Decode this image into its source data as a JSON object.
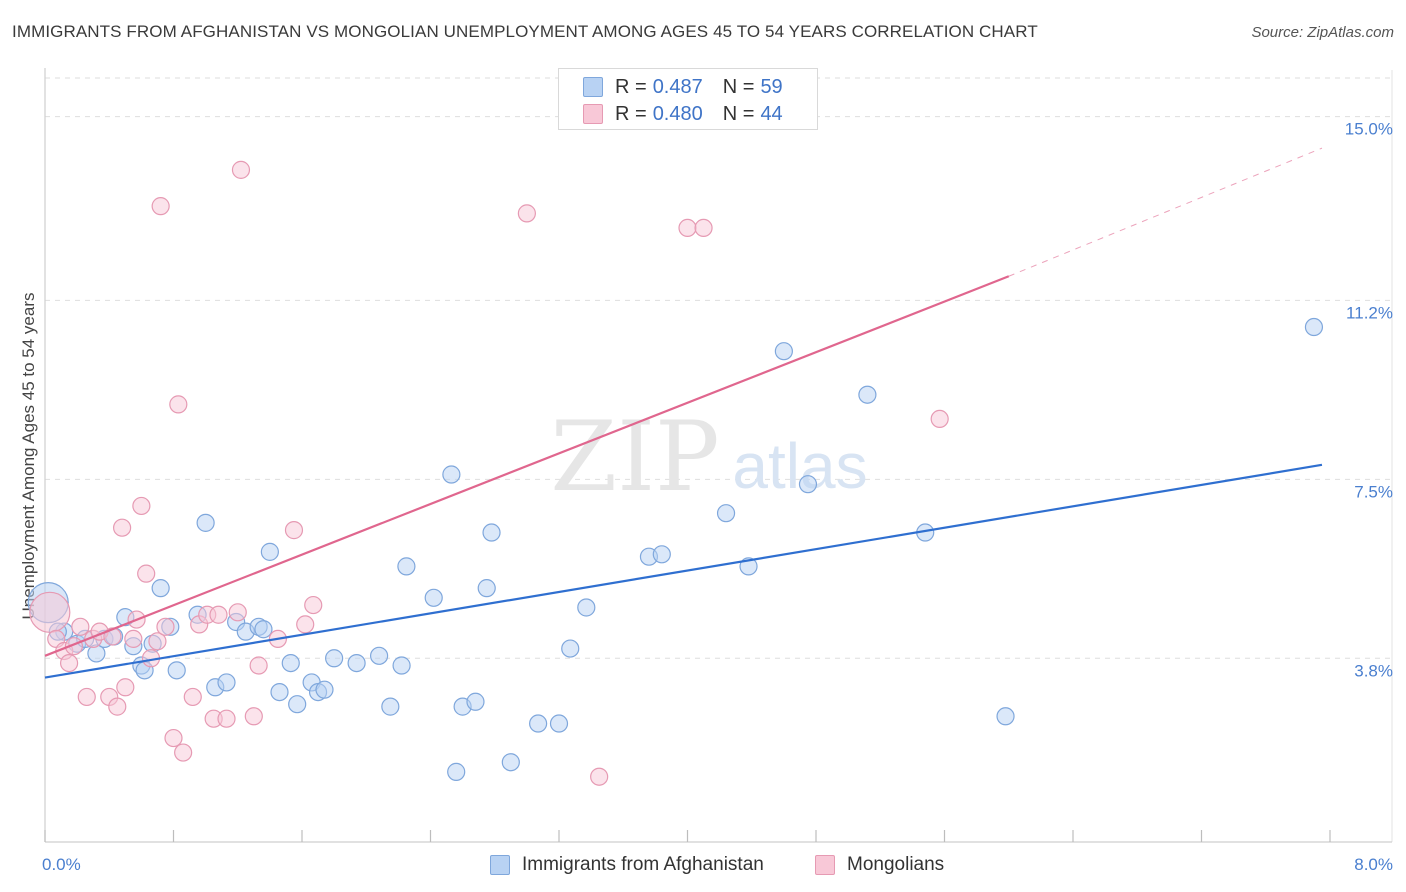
{
  "header": {
    "title": "IMMIGRANTS FROM AFGHANISTAN VS MONGOLIAN UNEMPLOYMENT AMONG AGES 45 TO 54 YEARS CORRELATION CHART",
    "source": "Source: ZipAtlas.com"
  },
  "legend": {
    "blue": {
      "r_label": "R =",
      "r_value": "0.487",
      "n_label": "N =",
      "n_value": "59"
    },
    "pink": {
      "r_label": "R =",
      "r_value": "0.480",
      "n_label": "N =",
      "n_value": "44"
    }
  },
  "bottom_legend": {
    "series1": "Immigrants from Afghanistan",
    "series2": "Mongolians"
  },
  "watermark": {
    "zip": "ZIP",
    "atlas": "atlas"
  },
  "colors": {
    "blue_fill": "#b8d2f3",
    "blue_stroke": "#7fa7dc",
    "blue_line": "#2f6fd0",
    "pink_fill": "#f8c8d7",
    "pink_stroke": "#e69ab3",
    "pink_line": "#e0668e",
    "tick_label": "#4a7fcf",
    "grid": "#dedede"
  },
  "chart_data": {
    "type": "scatter",
    "title": "IMMIGRANTS FROM AFGHANISTAN VS MONGOLIAN UNEMPLOYMENT AMONG AGES 45 TO 54 YEARS CORRELATION CHART",
    "xlabel": "",
    "ylabel": "Unemployment Among Ages 45 to 54 years",
    "xlim": [
      0,
      8.0
    ],
    "ylim": [
      0,
      15.8
    ],
    "x_tick_labels": [
      {
        "value": 0,
        "label": "0.0%"
      },
      {
        "value": 8.0,
        "label": "8.0%"
      }
    ],
    "y_tick_labels": [
      {
        "value": 3.8,
        "label": "3.8%"
      },
      {
        "value": 7.5,
        "label": "7.5%"
      },
      {
        "value": 11.2,
        "label": "11.2%"
      },
      {
        "value": 15.0,
        "label": "15.0%"
      }
    ],
    "series": [
      {
        "name": "Immigrants from Afghanistan",
        "color": "blue",
        "trend": {
          "x": [
            0,
            7.95
          ],
          "y": [
            3.4,
            7.8
          ]
        },
        "points": [
          {
            "x": 0.02,
            "y": 4.95,
            "big": true
          },
          {
            "x": 0.12,
            "y": 4.35
          },
          {
            "x": 0.2,
            "y": 4.1
          },
          {
            "x": 0.25,
            "y": 4.2
          },
          {
            "x": 0.32,
            "y": 3.9
          },
          {
            "x": 0.37,
            "y": 4.2
          },
          {
            "x": 0.43,
            "y": 4.25
          },
          {
            "x": 0.5,
            "y": 4.65
          },
          {
            "x": 0.55,
            "y": 4.05
          },
          {
            "x": 0.6,
            "y": 3.65
          },
          {
            "x": 0.62,
            "y": 3.55
          },
          {
            "x": 0.67,
            "y": 4.1
          },
          {
            "x": 0.72,
            "y": 5.25
          },
          {
            "x": 0.78,
            "y": 4.45
          },
          {
            "x": 0.82,
            "y": 3.55
          },
          {
            "x": 0.95,
            "y": 4.7
          },
          {
            "x": 1.0,
            "y": 6.6
          },
          {
            "x": 1.06,
            "y": 3.2
          },
          {
            "x": 1.13,
            "y": 3.3
          },
          {
            "x": 1.19,
            "y": 4.55
          },
          {
            "x": 1.25,
            "y": 4.35
          },
          {
            "x": 1.33,
            "y": 4.45
          },
          {
            "x": 1.36,
            "y": 4.4
          },
          {
            "x": 1.4,
            "y": 6.0
          },
          {
            "x": 1.46,
            "y": 3.1
          },
          {
            "x": 1.53,
            "y": 3.7
          },
          {
            "x": 1.57,
            "y": 2.85
          },
          {
            "x": 1.66,
            "y": 3.3
          },
          {
            "x": 1.7,
            "y": 3.1
          },
          {
            "x": 1.74,
            "y": 3.15
          },
          {
            "x": 1.8,
            "y": 3.8
          },
          {
            "x": 1.94,
            "y": 3.7
          },
          {
            "x": 2.08,
            "y": 3.85
          },
          {
            "x": 2.15,
            "y": 2.8
          },
          {
            "x": 2.22,
            "y": 3.65
          },
          {
            "x": 2.25,
            "y": 5.7
          },
          {
            "x": 2.42,
            "y": 5.05
          },
          {
            "x": 2.53,
            "y": 7.6
          },
          {
            "x": 2.56,
            "y": 1.45
          },
          {
            "x": 2.6,
            "y": 2.8
          },
          {
            "x": 2.68,
            "y": 2.9
          },
          {
            "x": 2.75,
            "y": 5.25
          },
          {
            "x": 2.78,
            "y": 6.4
          },
          {
            "x": 2.9,
            "y": 1.65
          },
          {
            "x": 3.07,
            "y": 2.45
          },
          {
            "x": 3.2,
            "y": 2.45
          },
          {
            "x": 3.27,
            "y": 4.0
          },
          {
            "x": 3.37,
            "y": 4.85
          },
          {
            "x": 3.76,
            "y": 5.9
          },
          {
            "x": 3.84,
            "y": 5.95
          },
          {
            "x": 4.24,
            "y": 6.8
          },
          {
            "x": 4.38,
            "y": 5.7
          },
          {
            "x": 4.6,
            "y": 10.15
          },
          {
            "x": 4.75,
            "y": 7.4
          },
          {
            "x": 5.12,
            "y": 9.25
          },
          {
            "x": 5.48,
            "y": 6.4
          },
          {
            "x": 5.98,
            "y": 2.6
          },
          {
            "x": 7.9,
            "y": 10.65
          },
          {
            "x": 0.08,
            "y": 4.35
          }
        ]
      },
      {
        "name": "Mongolians",
        "color": "pink",
        "trend": {
          "x": [
            0,
            6.0
          ],
          "y": [
            3.85,
            11.7
          ]
        },
        "trend_extrapolated": {
          "x": [
            6.0,
            7.95
          ],
          "y": [
            11.7,
            14.35
          ]
        },
        "points": [
          {
            "x": 0.03,
            "y": 4.75,
            "big": true
          },
          {
            "x": 0.07,
            "y": 4.2
          },
          {
            "x": 0.12,
            "y": 3.95
          },
          {
            "x": 0.15,
            "y": 3.7
          },
          {
            "x": 0.22,
            "y": 4.45
          },
          {
            "x": 0.26,
            "y": 3.0
          },
          {
            "x": 0.3,
            "y": 4.2
          },
          {
            "x": 0.34,
            "y": 4.35
          },
          {
            "x": 0.4,
            "y": 3.0
          },
          {
            "x": 0.45,
            "y": 2.8
          },
          {
            "x": 0.48,
            "y": 6.5
          },
          {
            "x": 0.5,
            "y": 3.2
          },
          {
            "x": 0.55,
            "y": 4.2
          },
          {
            "x": 0.57,
            "y": 4.6
          },
          {
            "x": 0.6,
            "y": 6.95
          },
          {
            "x": 0.63,
            "y": 5.55
          },
          {
            "x": 0.66,
            "y": 3.8
          },
          {
            "x": 0.7,
            "y": 4.15
          },
          {
            "x": 0.72,
            "y": 13.15
          },
          {
            "x": 0.75,
            "y": 4.45
          },
          {
            "x": 0.8,
            "y": 2.15
          },
          {
            "x": 0.83,
            "y": 9.05
          },
          {
            "x": 0.86,
            "y": 1.85
          },
          {
            "x": 0.92,
            "y": 3.0
          },
          {
            "x": 0.96,
            "y": 4.5
          },
          {
            "x": 1.01,
            "y": 4.7
          },
          {
            "x": 1.05,
            "y": 2.55
          },
          {
            "x": 1.13,
            "y": 2.55
          },
          {
            "x": 1.2,
            "y": 4.75
          },
          {
            "x": 1.22,
            "y": 13.9
          },
          {
            "x": 1.3,
            "y": 2.6
          },
          {
            "x": 1.33,
            "y": 3.65
          },
          {
            "x": 1.45,
            "y": 4.2
          },
          {
            "x": 1.55,
            "y": 6.45
          },
          {
            "x": 1.62,
            "y": 4.5
          },
          {
            "x": 1.67,
            "y": 4.9
          },
          {
            "x": 3.0,
            "y": 13.0
          },
          {
            "x": 3.45,
            "y": 1.35
          },
          {
            "x": 4.0,
            "y": 12.7
          },
          {
            "x": 4.1,
            "y": 12.7
          },
          {
            "x": 5.57,
            "y": 8.75
          },
          {
            "x": 0.42,
            "y": 4.25
          },
          {
            "x": 0.18,
            "y": 4.05
          },
          {
            "x": 1.08,
            "y": 4.7
          }
        ]
      }
    ]
  }
}
